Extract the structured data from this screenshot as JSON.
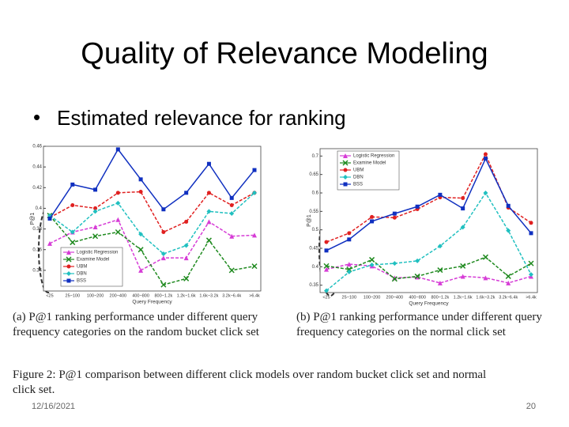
{
  "slide": {
    "title": "Quality of Relevance Modeling",
    "bullet": "Estimated relevance for ranking",
    "date": "12/16/2021",
    "page": "20"
  },
  "captions": {
    "a": "(a) P@1 ranking performance under different query frequency categories on the random bucket click set",
    "b": "(b) P@1 ranking performance under different query frequency categories on the normal click set",
    "figure": "Figure 2: P@1 comparison between different click models over random bucket click set and normal click set."
  },
  "chart_data": [
    {
      "type": "line",
      "xlabel": "Query Frequency",
      "ylabel": "P@1",
      "legend": "lower left",
      "categories": [
        "<25",
        "25~100",
        "100~200",
        "200~400",
        "400~800",
        "800~1.2k",
        "1.2k~1.6k",
        "1.6k~3.2k",
        "3.2k~6.4k",
        ">6.4k"
      ],
      "ylim": [
        0.32,
        0.46
      ],
      "yticks": [
        0.34,
        0.36,
        0.38,
        0.4,
        0.42,
        0.44,
        0.46
      ],
      "series": [
        {
          "name": "Logistic Regression",
          "color": "#d63cd6",
          "values": [
            0.366,
            0.377,
            0.382,
            0.389,
            0.34,
            0.352,
            0.352,
            0.387,
            0.373,
            0.374
          ]
        },
        {
          "name": "Examine Model",
          "color": "#1f8a1f",
          "values": [
            0.393,
            0.367,
            0.373,
            0.377,
            0.36,
            0.326,
            0.332,
            0.369,
            0.34,
            0.344
          ]
        },
        {
          "name": "UBM",
          "color": "#e02020",
          "values": [
            0.391,
            0.403,
            0.4,
            0.415,
            0.416,
            0.377,
            0.387,
            0.415,
            0.403,
            0.415
          ]
        },
        {
          "name": "DBN",
          "color": "#20c0c0",
          "values": [
            0.393,
            0.377,
            0.397,
            0.405,
            0.375,
            0.356,
            0.364,
            0.397,
            0.395,
            0.415
          ]
        },
        {
          "name": "BSS",
          "color": "#1030c0",
          "values": [
            0.39,
            0.423,
            0.418,
            0.457,
            0.428,
            0.399,
            0.415,
            0.443,
            0.41,
            0.437
          ]
        }
      ]
    },
    {
      "type": "line",
      "xlabel": "Query Frequency",
      "ylabel": "P@1",
      "legend": "upper left",
      "categories": [
        "<25",
        "25~100",
        "100~200",
        "200~400",
        "400~800",
        "800~1.2k",
        "1.2k~1.6k",
        "1.6k~3.2k",
        "3.2k~6.4k",
        ">6.4k"
      ],
      "ylim": [
        0.33,
        0.72
      ],
      "yticks": [
        0.35,
        0.4,
        0.45,
        0.5,
        0.55,
        0.6,
        0.65,
        0.7
      ],
      "series": [
        {
          "name": "Logistic Regression",
          "color": "#d63cd6",
          "values": [
            0.393,
            0.407,
            0.402,
            0.37,
            0.372,
            0.356,
            0.374,
            0.37,
            0.356,
            0.374
          ]
        },
        {
          "name": "Examine Model",
          "color": "#1f8a1f",
          "values": [
            0.402,
            0.393,
            0.419,
            0.367,
            0.374,
            0.391,
            0.402,
            0.426,
            0.374,
            0.409
          ]
        },
        {
          "name": "UBM",
          "color": "#e02020",
          "values": [
            0.467,
            0.491,
            0.535,
            0.533,
            0.556,
            0.588,
            0.586,
            0.705,
            0.56,
            0.519
          ]
        },
        {
          "name": "DBN",
          "color": "#20c0c0",
          "values": [
            0.335,
            0.386,
            0.405,
            0.409,
            0.416,
            0.456,
            0.507,
            0.6,
            0.498,
            0.379
          ]
        },
        {
          "name": "BSS",
          "color": "#1030c0",
          "values": [
            0.444,
            0.474,
            0.523,
            0.544,
            0.563,
            0.595,
            0.558,
            0.693,
            0.565,
            0.491
          ]
        }
      ]
    }
  ]
}
